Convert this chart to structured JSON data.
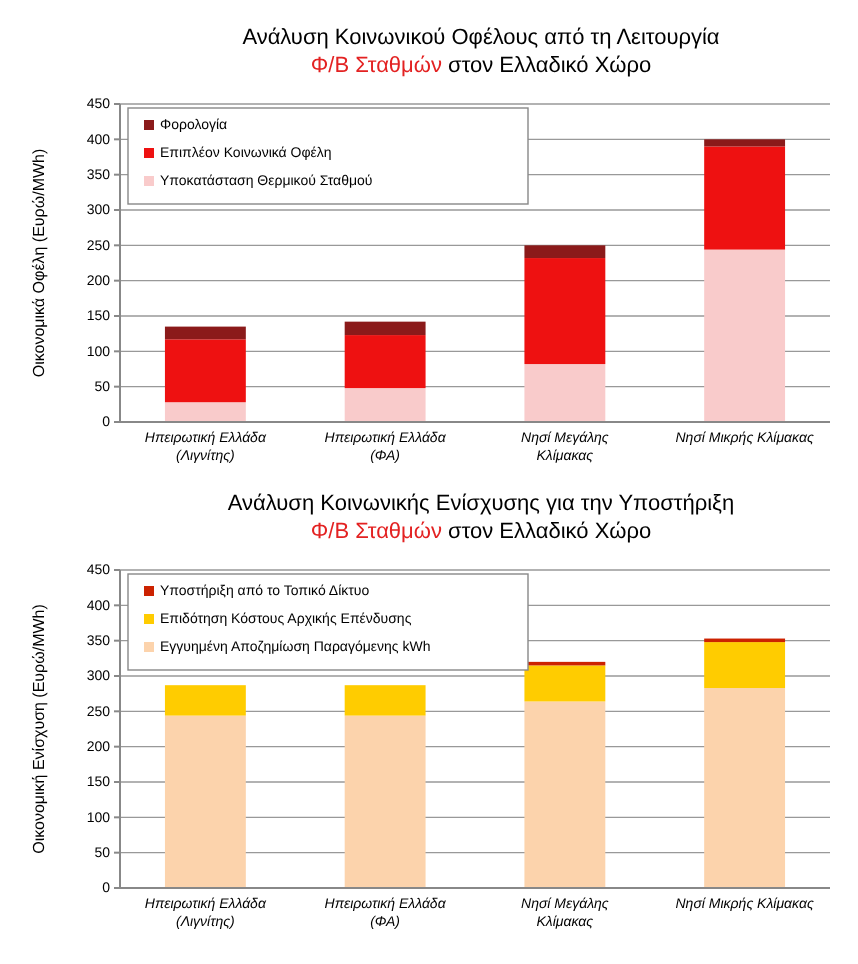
{
  "chart_data": [
    {
      "type": "bar",
      "title": "Ανάλυση Κοινωνικού Οφέλους από τη Λειτουργία",
      "subtitle": "Φ/Β Σταθμών στον Ελλαδικό Χώρο",
      "ylabel": "Οικονομικά Οφέλη (Ευρώ/MWh)",
      "categories": [
        "Ηπειρωτική Ελλάδα (Λιγνίτης)",
        "Ηπειρωτική Ελλάδα (ΦΑ)",
        "Νησί Μεγάλης Κλίμακας",
        "Νησί Μικρής Κλίμακας"
      ],
      "stacked": true,
      "ylim": [
        0,
        450
      ],
      "yticks": [
        0,
        50,
        100,
        150,
        200,
        250,
        300,
        350,
        400,
        450
      ],
      "grid": "y",
      "legend": "top left",
      "series": [
        {
          "name": "Υποκατάσταση Θερμικού Σταθμού",
          "color": "#f9cbcb",
          "values": [
            28,
            48,
            82,
            244
          ]
        },
        {
          "name": "Επιπλέον Κοινωνικά Οφέλη",
          "color": "#ee1111",
          "values": [
            89,
            75,
            150,
            146
          ]
        },
        {
          "name": "Φορολογία",
          "color": "#8b1a1a",
          "values": [
            18,
            19,
            18,
            10
          ]
        }
      ]
    },
    {
      "type": "bar",
      "title": "Ανάλυση Κοινωνικής Ενίσχυσης για την Υποστήριξη",
      "subtitle": "Φ/Β Σταθμών στον Ελλαδικό Χώρο",
      "ylabel": "Οικονομική Ενίσχυση (Ευρώ/MWh)",
      "categories": [
        "Ηπειρωτική Ελλάδα (Λιγνίτης)",
        "Ηπειρωτική Ελλάδα (ΦΑ)",
        "Νησί Μεγάλης Κλίμακας",
        "Νησί Μικρής Κλίμακας"
      ],
      "stacked": true,
      "ylim": [
        0,
        450
      ],
      "yticks": [
        0,
        50,
        100,
        150,
        200,
        250,
        300,
        350,
        400,
        450
      ],
      "grid": "y",
      "legend": "top left",
      "series": [
        {
          "name": "Εγγυημένη Αποζημίωση Παραγόμενης kWh",
          "color": "#fcd3ac",
          "values": [
            244,
            244,
            264,
            283
          ]
        },
        {
          "name": "Επιδότηση Κόστους Αρχικής Επένδυσης",
          "color": "#ffcc00",
          "values": [
            43,
            43,
            51,
            65
          ]
        },
        {
          "name": "Υποστήριξη από το Τοπικό Δίκτυο",
          "color": "#cc2200",
          "values": [
            0,
            0,
            5,
            5
          ]
        }
      ]
    }
  ]
}
